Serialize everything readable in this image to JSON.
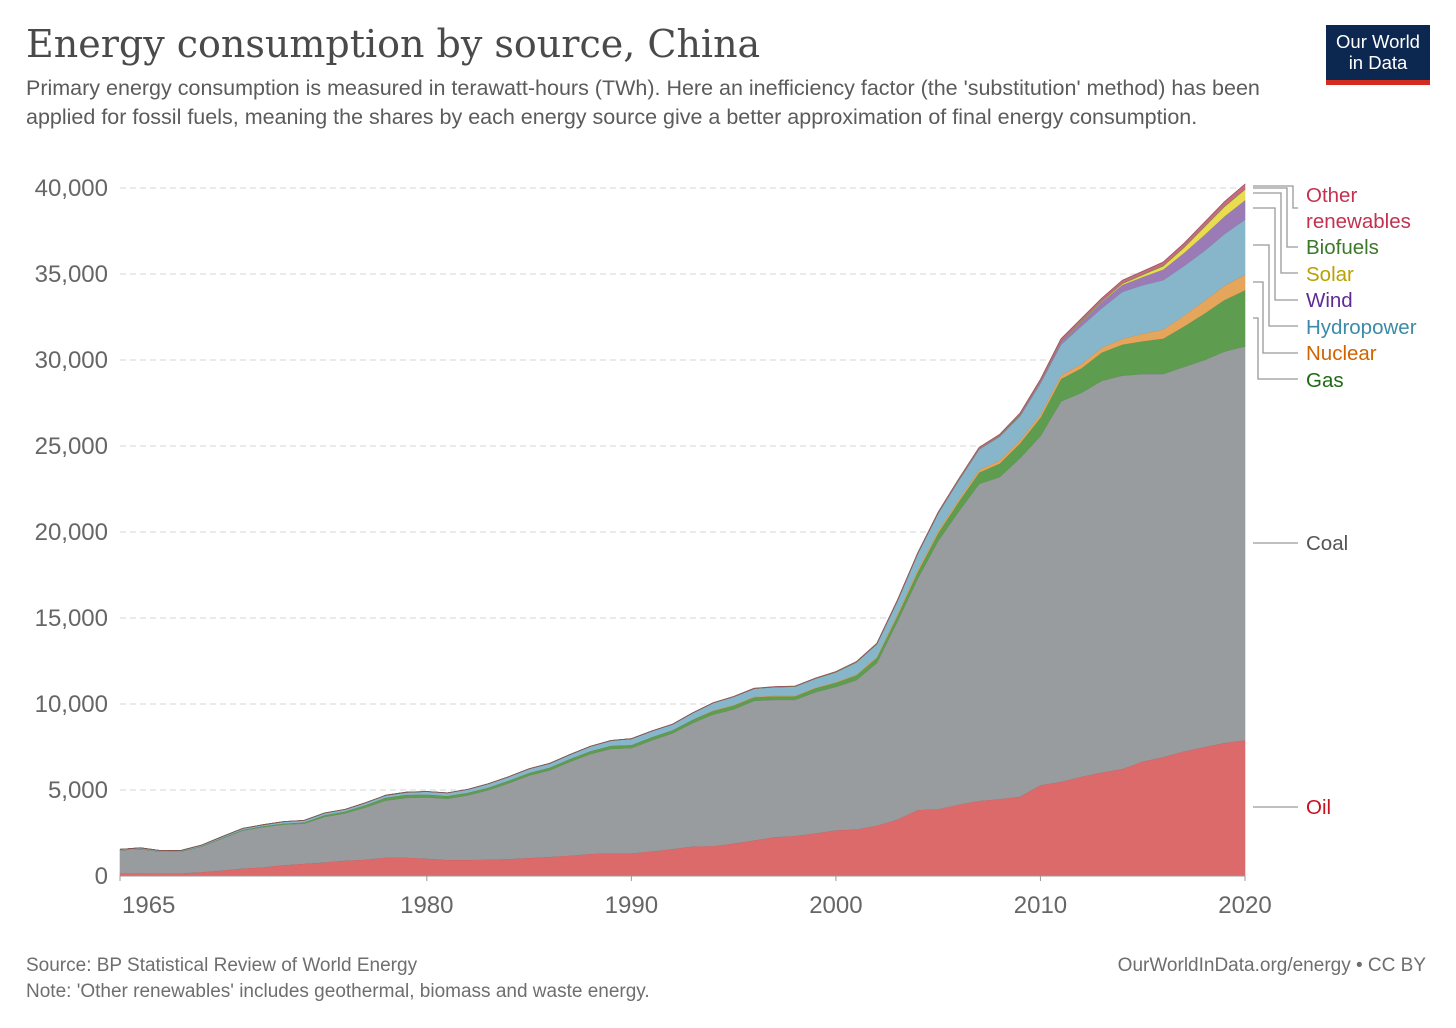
{
  "header": {
    "title": "Energy consumption by source, China",
    "subtitle": "Primary energy consumption is measured in terawatt-hours (TWh). Here an inefficiency factor (the 'substitution' method) has been applied for fossil fuels, meaning the shares by each energy source give a better approximation of final energy consumption.",
    "logo_line1": "Our World",
    "logo_line2": "in Data"
  },
  "footer": {
    "source": "Source: BP Statistical Review of World Energy",
    "note": "Note: 'Other renewables' includes geothermal, biomass and waste energy.",
    "credit": "OurWorldInData.org/energy • CC BY"
  },
  "chart_data": {
    "type": "area",
    "stacked": true,
    "title": "Energy consumption by source, China",
    "xlabel": "",
    "ylabel": "TWh",
    "xlim": [
      1965,
      2020
    ],
    "ylim": [
      0,
      40000
    ],
    "grid": "horizontal-dashed",
    "legend": "right-inline",
    "y_ticks": [
      0,
      5000,
      10000,
      15000,
      20000,
      25000,
      30000,
      35000,
      40000
    ],
    "y_tick_labels": [
      "0",
      "5,000",
      "10,000",
      "15,000",
      "20,000",
      "25,000",
      "30,000",
      "35,000",
      "40,000"
    ],
    "x_ticks": [
      1965,
      1980,
      1990,
      2000,
      2010,
      2020
    ],
    "x_tick_labels": [
      "1965",
      "1980",
      "1990",
      "2000",
      "2010",
      "2020"
    ],
    "x_start": 1965,
    "series": [
      {
        "name": "Oil",
        "label": "Oil",
        "fill": "#dc6a6b",
        "text": "#c8101e",
        "values": [
          160,
          180,
          160,
          170,
          230,
          330,
          450,
          520,
          640,
          720,
          800,
          900,
          960,
          1080,
          1080,
          1020,
          950,
          950,
          960,
          1000,
          1060,
          1120,
          1200,
          1290,
          1340,
          1330,
          1440,
          1570,
          1730,
          1750,
          1900,
          2080,
          2270,
          2340,
          2490,
          2670,
          2720,
          2940,
          3290,
          3850,
          3900,
          4160,
          4380,
          4480,
          4620,
          5290,
          5480,
          5780,
          6030,
          6230,
          6660,
          6920,
          7250,
          7500,
          7750,
          7900
        ]
      },
      {
        "name": "Coal",
        "label": "Coal",
        "fill": "#989c9f",
        "text": "#555555",
        "values": [
          1340,
          1400,
          1260,
          1260,
          1490,
          1870,
          2200,
          2330,
          2360,
          2330,
          2650,
          2750,
          3040,
          3320,
          3470,
          3560,
          3550,
          3750,
          4040,
          4400,
          4790,
          5030,
          5450,
          5810,
          6060,
          6120,
          6460,
          6730,
          7170,
          7650,
          7800,
          8120,
          7980,
          7910,
          8210,
          8330,
          8680,
          9460,
          11510,
          13450,
          15600,
          17040,
          18420,
          18720,
          19680,
          20310,
          22120,
          22320,
          22770,
          22870,
          22540,
          22280,
          22350,
          22500,
          22750,
          22900
        ]
      },
      {
        "name": "Gas",
        "label": "Gas",
        "fill": "#5e9c50",
        "text": "#1d6b12",
        "values": [
          10,
          13,
          14,
          15,
          25,
          35,
          45,
          55,
          65,
          80,
          95,
          110,
          140,
          170,
          180,
          170,
          160,
          150,
          145,
          150,
          155,
          160,
          170,
          170,
          180,
          180,
          180,
          185,
          200,
          210,
          220,
          200,
          210,
          210,
          230,
          250,
          280,
          300,
          330,
          400,
          460,
          560,
          670,
          780,
          860,
          1060,
          1300,
          1430,
          1650,
          1800,
          1900,
          2050,
          2350,
          2700,
          3000,
          3270
        ]
      },
      {
        "name": "Nuclear",
        "label": "Nuclear",
        "fill": "#e5a55b",
        "text": "#d06500",
        "values": [
          0,
          0,
          0,
          0,
          0,
          0,
          0,
          0,
          0,
          0,
          0,
          0,
          0,
          0,
          0,
          0,
          0,
          0,
          0,
          0,
          0,
          0,
          0,
          0,
          0,
          0,
          0,
          0,
          0,
          35,
          35,
          38,
          37,
          38,
          40,
          43,
          46,
          65,
          112,
          130,
          135,
          140,
          160,
          175,
          180,
          190,
          225,
          250,
          285,
          340,
          440,
          540,
          630,
          740,
          840,
          900
        ]
      },
      {
        "name": "Hydropower",
        "label": "Hydropower",
        "fill": "#87b6ca",
        "text": "#3b8aa8",
        "values": [
          40,
          45,
          45,
          50,
          55,
          60,
          70,
          80,
          95,
          100,
          115,
          110,
          120,
          125,
          140,
          160,
          170,
          185,
          215,
          215,
          230,
          235,
          245,
          270,
          295,
          350,
          350,
          330,
          380,
          420,
          470,
          460,
          490,
          520,
          510,
          560,
          700,
          720,
          740,
          900,
          1000,
          1090,
          1170,
          1390,
          1400,
          1800,
          1770,
          2200,
          2290,
          2730,
          2820,
          2860,
          2880,
          2900,
          3000,
          3200
        ]
      },
      {
        "name": "Wind",
        "label": "Wind",
        "fill": "#9b7bb5",
        "text": "#5e2a96",
        "values": [
          0,
          0,
          0,
          0,
          0,
          0,
          0,
          0,
          0,
          0,
          0,
          0,
          0,
          0,
          0,
          0,
          0,
          0,
          0,
          0,
          0,
          0,
          0,
          0,
          0,
          0,
          0,
          0,
          0,
          0,
          0,
          0,
          0,
          0,
          0,
          4,
          5,
          7,
          10,
          13,
          14,
          27,
          42,
          40,
          75,
          120,
          190,
          260,
          370,
          410,
          480,
          620,
          760,
          930,
          1020,
          1130
        ]
      },
      {
        "name": "Solar",
        "label": "Solar",
        "fill": "#e9dc4e",
        "text": "#b8a100",
        "values": [
          0,
          0,
          0,
          0,
          0,
          0,
          0,
          0,
          0,
          0,
          0,
          0,
          0,
          0,
          0,
          0,
          0,
          0,
          0,
          0,
          0,
          0,
          0,
          0,
          0,
          0,
          0,
          0,
          0,
          0,
          0,
          0,
          0,
          0,
          0,
          0,
          0,
          0,
          0,
          0,
          0,
          0,
          0,
          0,
          0,
          1,
          6,
          16,
          22,
          62,
          115,
          195,
          300,
          450,
          560,
          620
        ]
      },
      {
        "name": "Biofuels",
        "label": "Biofuels",
        "fill": "#6f9f4a",
        "text": "#3c7a2a",
        "values": [
          0,
          0,
          0,
          0,
          0,
          0,
          0,
          0,
          0,
          0,
          0,
          0,
          0,
          0,
          0,
          0,
          0,
          0,
          0,
          0,
          0,
          0,
          0,
          0,
          0,
          0,
          0,
          2,
          3,
          5,
          8,
          10,
          12,
          15,
          18,
          20,
          22,
          22,
          25,
          27,
          28,
          28,
          30,
          32,
          36,
          40,
          40,
          40,
          40,
          40,
          40,
          40,
          40,
          40,
          40,
          40
        ]
      },
      {
        "name": "Other renewables",
        "label_line1": "Other",
        "label_line2": "renewables",
        "fill": "#c96b7e",
        "text": "#c4314f",
        "values": [
          0,
          0,
          0,
          0,
          0,
          0,
          0,
          0,
          0,
          0,
          0,
          0,
          0,
          0,
          0,
          0,
          0,
          0,
          0,
          0,
          0,
          0,
          0,
          0,
          0,
          5,
          6,
          7,
          8,
          9,
          10,
          11,
          12,
          13,
          14,
          15,
          18,
          21,
          24,
          27,
          30,
          40,
          50,
          60,
          70,
          80,
          100,
          120,
          140,
          155,
          170,
          190,
          210,
          230,
          250,
          270
        ]
      }
    ]
  }
}
